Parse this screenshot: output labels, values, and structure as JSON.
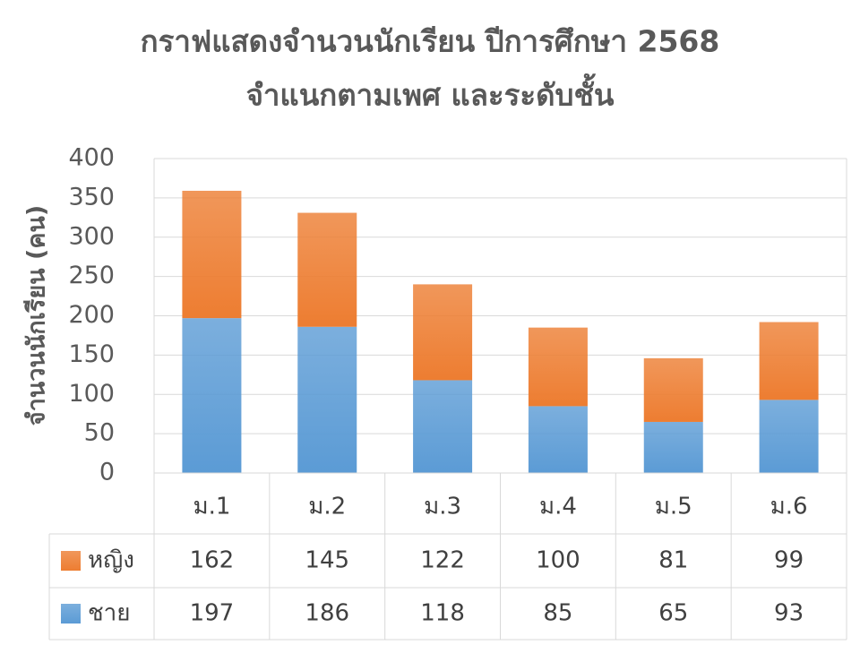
{
  "chart_data": {
    "type": "bar",
    "stacked": true,
    "title": "กราฟแสดงจำนวนนักเรียน ปีการศึกษา 2568",
    "subtitle": "จำแนกตามเพศ และระดับชั้น",
    "y_label": "จำนวนนักเรียน (คน)",
    "categories": [
      "ม.1",
      "ม.2",
      "ม.3",
      "ม.4",
      "ม.5",
      "ม.6"
    ],
    "series": [
      {
        "name": "หญิง",
        "color": "#ed7d31",
        "values": [
          162,
          145,
          122,
          100,
          81,
          99
        ]
      },
      {
        "name": "ชาย",
        "color": "#5b9bd5",
        "values": [
          197,
          186,
          118,
          85,
          65,
          93
        ]
      }
    ],
    "ylim": [
      0,
      400
    ],
    "yticks": [
      0,
      50,
      100,
      150,
      200,
      250,
      300,
      350,
      400
    ],
    "grid": true,
    "data_table": true
  }
}
